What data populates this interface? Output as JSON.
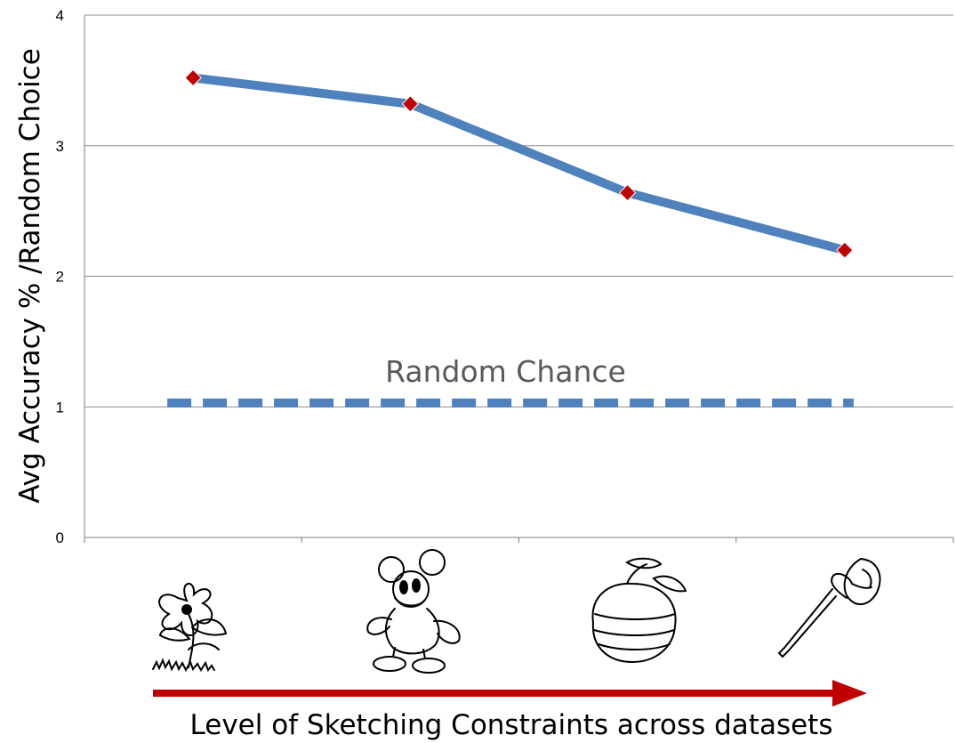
{
  "chart_data": {
    "type": "line",
    "title": "",
    "xlabel": "Level of Sketching Constraints across datasets",
    "ylabel": "Avg Accuracy % /Random Choice",
    "ylim": [
      0,
      4
    ],
    "yticks": [
      0,
      1,
      2,
      3,
      4
    ],
    "grid": true,
    "categories": [
      "flower-sketch-icon",
      "mickey-mouse-sketch-icon",
      "apple-sketch-icon",
      "screwdriver-sketch-icon"
    ],
    "series": [
      {
        "values": [
          3.52,
          3.32,
          2.64,
          2.2
        ],
        "color": "#4F81BD",
        "marker_color": "#C00000"
      }
    ],
    "reference_line": {
      "label": "Random Chance",
      "value": 1.03,
      "style": "dashed",
      "color": "#4F81BD"
    },
    "arrow_color": "#C00000"
  }
}
